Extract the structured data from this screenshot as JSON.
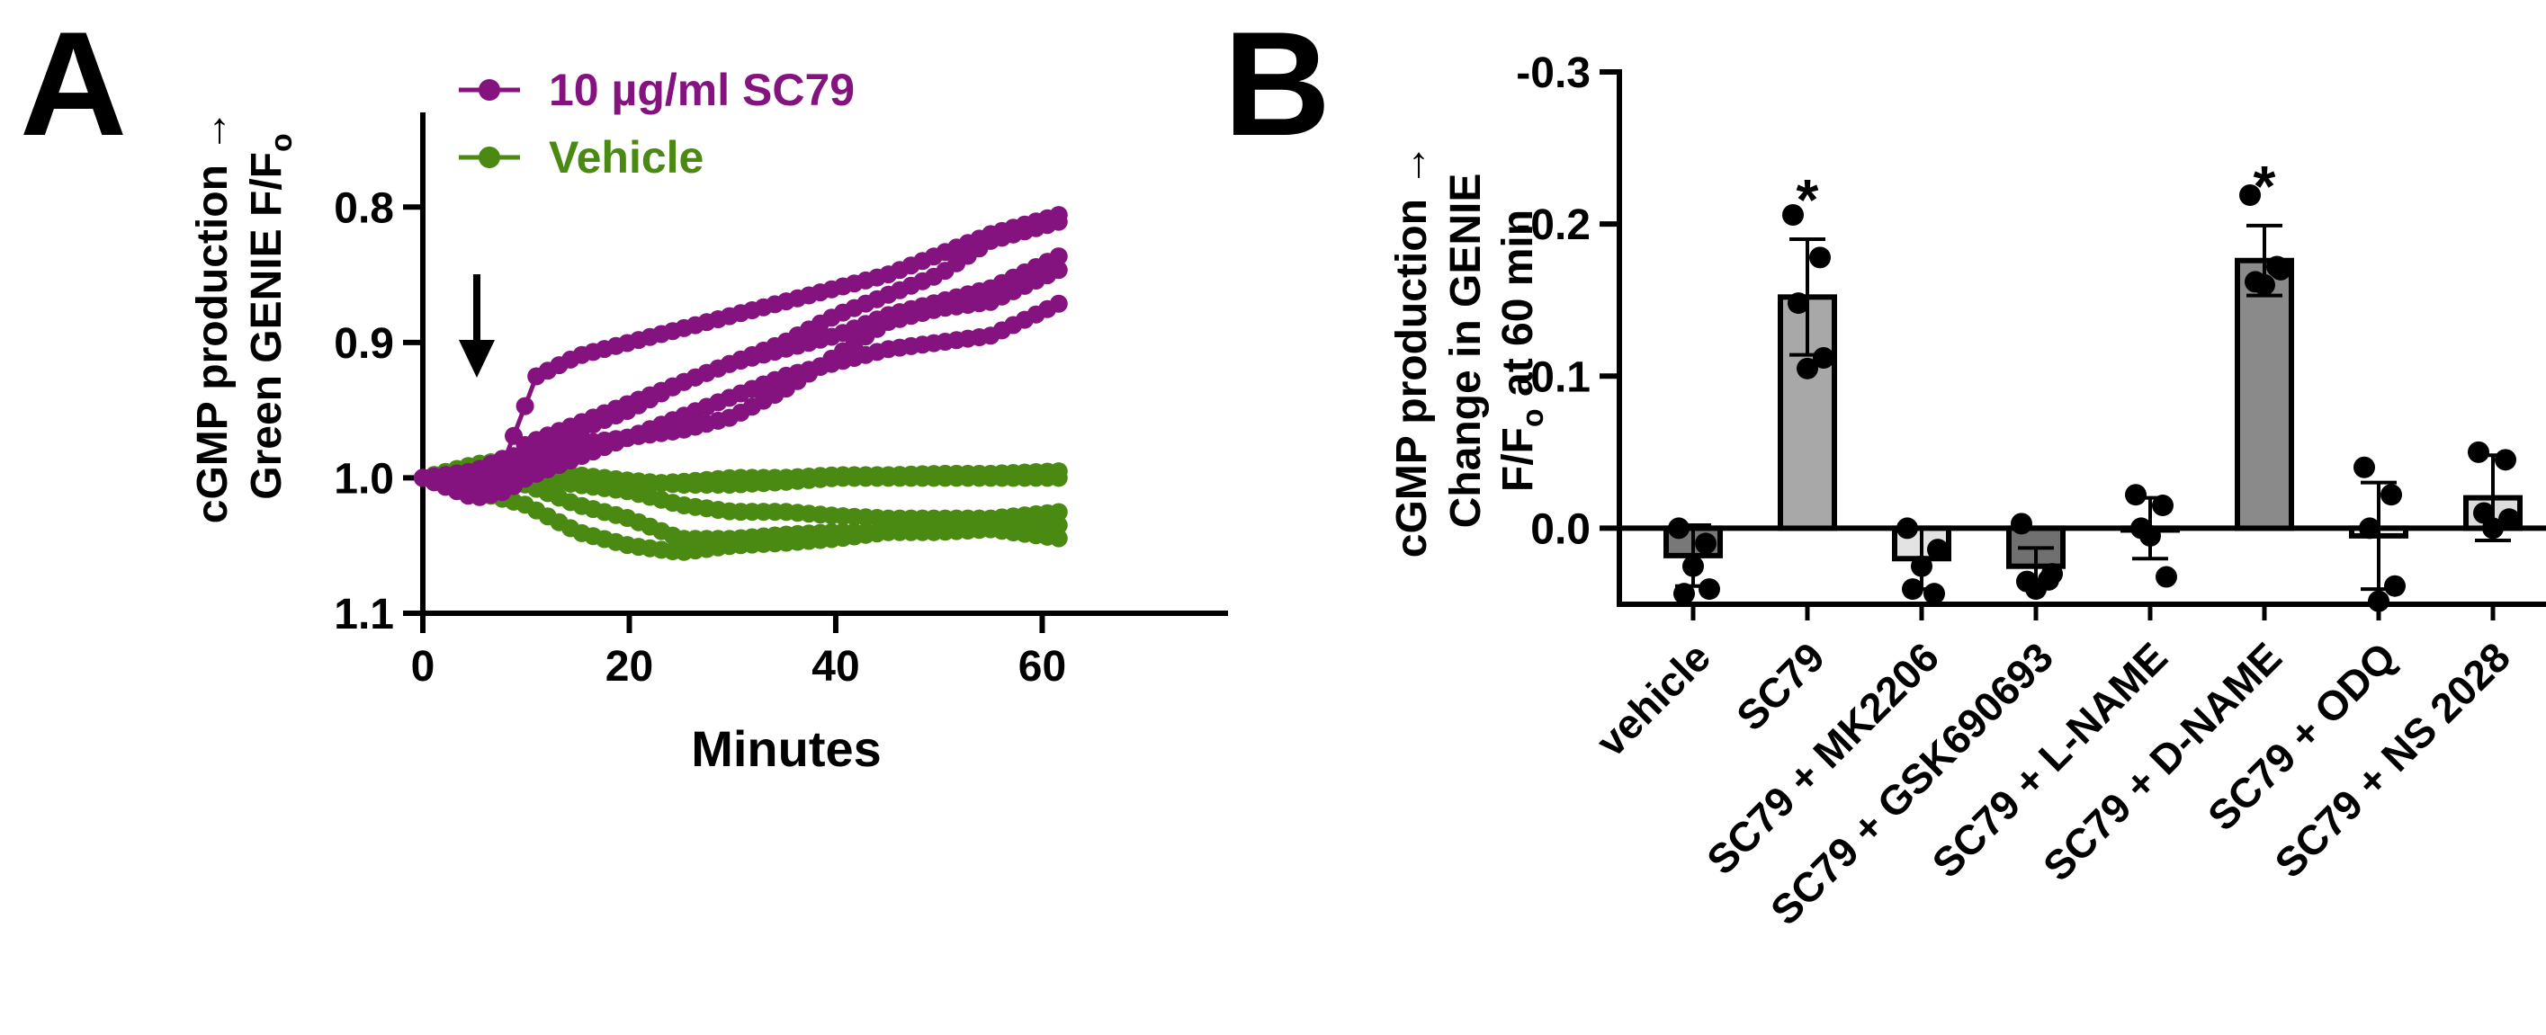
{
  "colors": {
    "sc79": "#84127f",
    "vehicle": "#4a8a12",
    "axis": "#000000",
    "bar_vehicle": "#787878",
    "bar_sc79": "#a8a8a8",
    "bar_mk": "#e3e3e3",
    "bar_gsk": "#707070",
    "bar_lname": "#ffffff",
    "bar_dname": "#8a8a8a",
    "bar_odq": "#ffffff",
    "bar_ns": "#dcdcdc"
  },
  "panels": {
    "a": {
      "letter": "A"
    },
    "b": {
      "letter": "B"
    }
  },
  "chart_data": [
    {
      "type": "line",
      "panel": "A",
      "ylabel_line1": "cGMP production →",
      "ylabel_line2": "Green GENIE F/F",
      "ylabel_sub": "o",
      "xlabel": "Minutes",
      "xlim": [
        0,
        78
      ],
      "xticks": [
        0,
        20,
        40,
        60
      ],
      "xtick_labels": [
        "0",
        "20",
        "40",
        "60"
      ],
      "ylim": [
        0.75,
        1.1
      ],
      "y_inverted": true,
      "yticks": [
        0.8,
        0.9,
        1.0,
        1.1
      ],
      "ytick_labels": [
        "0.8",
        "0.9",
        "1.0",
        "1.1"
      ],
      "annotation": {
        "type": "arrow-down",
        "x": 5
      },
      "legend": [
        {
          "label": "10 µg/ml SC79",
          "color_key": "sc79"
        },
        {
          "label": "Vehicle",
          "color_key": "vehicle"
        }
      ],
      "series": [
        {
          "name": "10 µg/ml SC79",
          "color_key": "sc79",
          "points": [
            [
              0,
              1.0
            ],
            [
              5,
              1.005
            ],
            [
              8,
              1.0
            ],
            [
              10,
              0.985
            ],
            [
              15,
              0.965
            ],
            [
              20,
              0.95
            ],
            [
              25,
              0.93
            ],
            [
              30,
              0.915
            ],
            [
              35,
              0.9
            ],
            [
              40,
              0.88
            ],
            [
              45,
              0.865
            ],
            [
              50,
              0.85
            ],
            [
              55,
              0.825
            ],
            [
              62,
              0.81
            ]
          ]
        },
        {
          "name": "10 µg/ml SC79",
          "color_key": "sc79",
          "points": [
            [
              0,
              1.0
            ],
            [
              5,
              0.995
            ],
            [
              8,
              0.985
            ],
            [
              11,
              0.925
            ],
            [
              15,
              0.91
            ],
            [
              20,
              0.9
            ],
            [
              25,
              0.89
            ],
            [
              30,
              0.88
            ],
            [
              35,
              0.87
            ],
            [
              40,
              0.86
            ],
            [
              45,
              0.85
            ],
            [
              50,
              0.835
            ],
            [
              55,
              0.82
            ],
            [
              62,
              0.805
            ]
          ]
        },
        {
          "name": "10 µg/ml SC79",
          "color_key": "sc79",
          "points": [
            [
              0,
              1.0
            ],
            [
              5,
              1.01
            ],
            [
              8,
              0.99
            ],
            [
              10,
              0.975
            ],
            [
              15,
              0.96
            ],
            [
              20,
              0.945
            ],
            [
              25,
              0.93
            ],
            [
              30,
              0.915
            ],
            [
              35,
              0.905
            ],
            [
              40,
              0.895
            ],
            [
              45,
              0.88
            ],
            [
              50,
              0.87
            ],
            [
              55,
              0.86
            ],
            [
              62,
              0.835
            ]
          ]
        },
        {
          "name": "10 µg/ml SC79",
          "color_key": "sc79",
          "points": [
            [
              0,
              1.0
            ],
            [
              5,
              1.012
            ],
            [
              8,
              1.0
            ],
            [
              10,
              0.99
            ],
            [
              15,
              0.975
            ],
            [
              20,
              0.97
            ],
            [
              25,
              0.965
            ],
            [
              30,
              0.955
            ],
            [
              35,
              0.935
            ],
            [
              40,
              0.91
            ],
            [
              45,
              0.885
            ],
            [
              50,
              0.875
            ],
            [
              55,
              0.87
            ],
            [
              62,
              0.845
            ]
          ]
        },
        {
          "name": "10 µg/ml SC79",
          "color_key": "sc79",
          "points": [
            [
              0,
              1.0
            ],
            [
              5,
              1.015
            ],
            [
              8,
              1.01
            ],
            [
              10,
              1.0
            ],
            [
              15,
              0.985
            ],
            [
              20,
              0.97
            ],
            [
              25,
              0.955
            ],
            [
              30,
              0.94
            ],
            [
              35,
              0.925
            ],
            [
              40,
              0.915
            ],
            [
              45,
              0.905
            ],
            [
              50,
              0.9
            ],
            [
              55,
              0.895
            ],
            [
              62,
              0.87
            ]
          ]
        },
        {
          "name": "Vehicle",
          "color_key": "vehicle",
          "points": [
            [
              0,
              1.0
            ],
            [
              5,
              1.0
            ],
            [
              10,
              1.005
            ],
            [
              15,
              1.02
            ],
            [
              20,
              1.03
            ],
            [
              25,
              1.045
            ],
            [
              30,
              1.045
            ],
            [
              35,
              1.042
            ],
            [
              40,
              1.04
            ],
            [
              45,
              1.04
            ],
            [
              50,
              1.04
            ],
            [
              55,
              1.038
            ],
            [
              62,
              1.045
            ]
          ]
        },
        {
          "name": "Vehicle",
          "color_key": "vehicle",
          "points": [
            [
              0,
              1.0
            ],
            [
              5,
              1.01
            ],
            [
              10,
              1.02
            ],
            [
              15,
              1.04
            ],
            [
              20,
              1.05
            ],
            [
              25,
              1.055
            ],
            [
              30,
              1.05
            ],
            [
              35,
              1.048
            ],
            [
              40,
              1.045
            ],
            [
              45,
              1.04
            ],
            [
              50,
              1.038
            ],
            [
              55,
              1.035
            ],
            [
              62,
              1.035
            ]
          ]
        },
        {
          "name": "Vehicle",
          "color_key": "vehicle",
          "points": [
            [
              0,
              1.0
            ],
            [
              5,
              0.995
            ],
            [
              10,
              1.0
            ],
            [
              15,
              1.005
            ],
            [
              20,
              1.01
            ],
            [
              25,
              1.02
            ],
            [
              30,
              1.025
            ],
            [
              35,
              1.025
            ],
            [
              40,
              1.028
            ],
            [
              45,
              1.03
            ],
            [
              50,
              1.03
            ],
            [
              55,
              1.03
            ],
            [
              62,
              1.025
            ]
          ]
        },
        {
          "name": "Vehicle",
          "color_key": "vehicle",
          "points": [
            [
              0,
              1.0
            ],
            [
              5,
              0.99
            ],
            [
              10,
              0.985
            ],
            [
              15,
              1.0
            ],
            [
              20,
              1.005
            ],
            [
              25,
              1.003
            ],
            [
              30,
              1.0
            ],
            [
              35,
              1.0
            ],
            [
              40,
              0.998
            ],
            [
              45,
              0.998
            ],
            [
              50,
              0.997
            ],
            [
              55,
              0.997
            ],
            [
              62,
              0.995
            ]
          ]
        },
        {
          "name": "Vehicle",
          "color_key": "vehicle",
          "points": [
            [
              0,
              1.0
            ],
            [
              5,
              1.0
            ],
            [
              10,
              0.995
            ],
            [
              15,
              0.998
            ],
            [
              20,
              1.002
            ],
            [
              25,
              1.005
            ],
            [
              30,
              1.005
            ],
            [
              35,
              1.003
            ],
            [
              40,
              1.0
            ],
            [
              45,
              1.0
            ],
            [
              50,
              1.0
            ],
            [
              55,
              1.0
            ],
            [
              62,
              1.0
            ]
          ]
        }
      ]
    },
    {
      "type": "bar",
      "panel": "B",
      "ylabel_line1": "cGMP production →",
      "ylabel_line2": "Change in GENIE",
      "ylabel_line3": "F/F",
      "ylabel_sub": "o",
      "ylabel_line3_suffix": " at 60 min",
      "ylim": [
        -0.3,
        0.05
      ],
      "y_inverted": true,
      "yticks": [
        -0.3,
        -0.2,
        -0.1,
        0.0
      ],
      "ytick_labels": [
        "-0.3",
        "-0.2",
        "-0.1",
        "0.0"
      ],
      "categories": [
        "vehicle",
        "SC79",
        "SC79 + MK2206",
        "SC79 + GSK690693",
        "SC79 + L-NAME",
        "SC79 + D-NAME",
        "SC79 + ODQ",
        "SC79 + NS 2028"
      ],
      "values": [
        0.018,
        -0.152,
        0.02,
        0.025,
        0.0,
        -0.176,
        0.005,
        -0.02
      ],
      "errors": [
        0.02,
        0.038,
        0.02,
        0.012,
        0.02,
        0.023,
        0.035,
        0.028
      ],
      "bar_color_keys": [
        "bar_vehicle",
        "bar_sc79",
        "bar_mk",
        "bar_gsk",
        "bar_lname",
        "bar_dname",
        "bar_odq",
        "bar_ns"
      ],
      "points": [
        [
          0.0,
          0.01,
          0.043,
          0.04,
          0.025
        ],
        [
          -0.206,
          -0.178,
          -0.148,
          -0.112,
          -0.105
        ],
        [
          0.0,
          0.043,
          0.04,
          0.014,
          0.025
        ],
        [
          -0.003,
          0.034,
          0.035,
          0.03,
          0.04
        ],
        [
          -0.022,
          -0.015,
          0.0,
          0.032,
          0.005
        ],
        [
          -0.219,
          -0.172,
          -0.162,
          -0.17,
          -0.16
        ],
        [
          -0.04,
          -0.022,
          0.0,
          0.038,
          0.048
        ],
        [
          -0.05,
          -0.045,
          -0.01,
          -0.006,
          0.0
        ]
      ],
      "annotations": [
        {
          "category_index": 1,
          "text": "*"
        },
        {
          "category_index": 5,
          "text": "*"
        }
      ]
    }
  ]
}
